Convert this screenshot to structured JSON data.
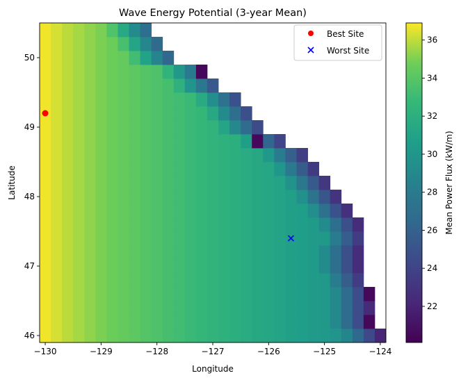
{
  "chart_data": {
    "type": "heatmap",
    "title": "Wave Energy Potential (3-year Mean)",
    "xlabel": "Longitude",
    "ylabel": "Latitude",
    "xlim": [
      -130.1,
      -123.9
    ],
    "ylim": [
      45.9,
      50.5
    ],
    "xticks": [
      -130,
      -129,
      -128,
      -127,
      -126,
      -125,
      -124
    ],
    "xtick_labels": [
      "−130",
      "−129",
      "−128",
      "−127",
      "−126",
      "−125",
      "−124"
    ],
    "yticks": [
      46,
      47,
      48,
      49,
      50
    ],
    "ytick_labels": [
      "46",
      "47",
      "48",
      "49",
      "50"
    ],
    "grid_cell": {
      "lon_step": 0.2,
      "lat_step": 0.2,
      "lon_start": -130.1,
      "lat_start": 45.9,
      "columns": 31,
      "rows": 23
    },
    "coast_boundary": {
      "lats": [
        50.4,
        50.2,
        50.0,
        49.8,
        49.6,
        49.4,
        49.2,
        49.0,
        48.8,
        48.6,
        48.4,
        48.2,
        48.0,
        47.8,
        47.6,
        47.4,
        47.2,
        47.0,
        46.8,
        46.6,
        46.4,
        46.2,
        46.0
      ],
      "last_lon": [
        -128.2,
        -128.0,
        -127.8,
        -127.2,
        -127.0,
        -126.6,
        -126.4,
        -126.2,
        -125.8,
        -125.4,
        -125.2,
        -125.0,
        -124.8,
        -124.6,
        -124.4,
        -124.3,
        -124.4,
        -124.4,
        -124.3,
        -124.2,
        -124.2,
        -124.2,
        -124.0
      ]
    },
    "value_model": {
      "v_west": 37.0,
      "v_east": 29.0,
      "coast_drop": 7.0,
      "coast_band_deg": 0.7,
      "edge_cells": [
        "-127.2,49.8",
        "-126.2,48.8",
        "-124.2,46.6",
        "-124.2,46.2",
        "-124.2,45.9"
      ],
      "edge_value": 20.5
    },
    "colorbar": {
      "label": "Mean Power Flux (kW/m)",
      "range": [
        20.1,
        36.9
      ],
      "ticks": [
        22,
        24,
        26,
        28,
        30,
        32,
        34,
        36
      ],
      "tick_labels": [
        "22",
        "24",
        "26",
        "28",
        "30",
        "32",
        "34",
        "36"
      ],
      "colormap": "viridis"
    },
    "series": [
      {
        "name": "Best Site",
        "marker": "circle",
        "color": "#ff0000",
        "x": -130.0,
        "y": 49.2
      },
      {
        "name": "Worst Site",
        "marker": "x",
        "color": "#0000ff",
        "x": -125.6,
        "y": 47.4
      }
    ],
    "legend_position": "top-right"
  }
}
